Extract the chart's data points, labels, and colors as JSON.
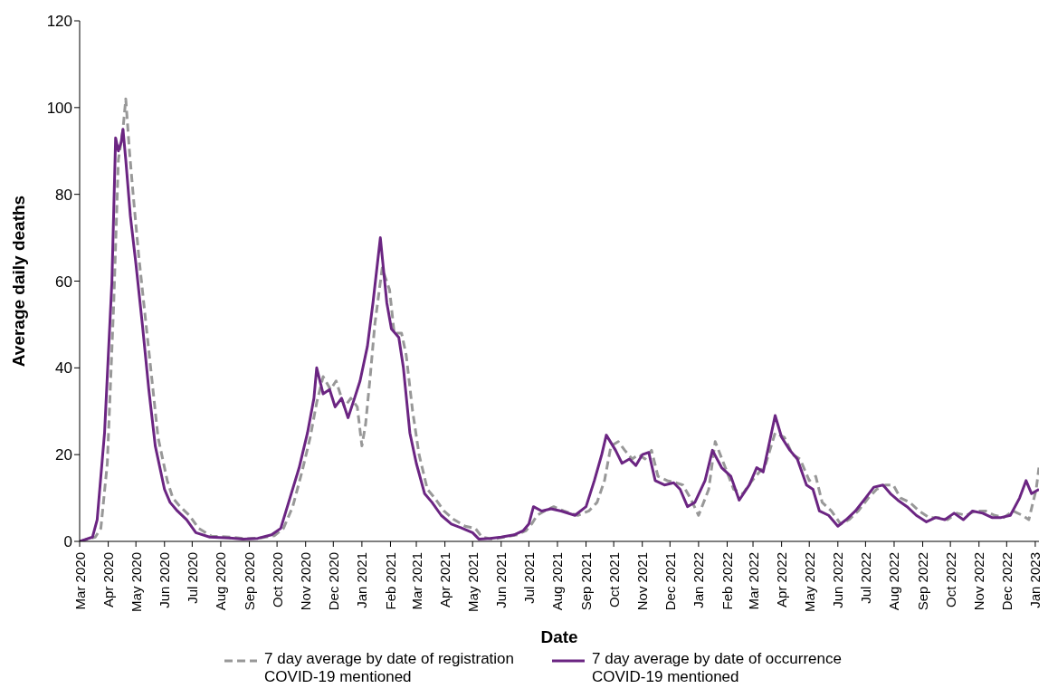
{
  "chart_data": {
    "type": "line",
    "xlabel": "Date",
    "ylabel": "Average daily deaths",
    "xlim": [
      "2020-03-01",
      "2023-01-05"
    ],
    "ylim": [
      0,
      120
    ],
    "yticks": [
      0,
      20,
      40,
      60,
      80,
      100,
      120
    ],
    "xticks": [
      {
        "value": "2020-03-01",
        "label": "Mar 2020"
      },
      {
        "value": "2020-04-01",
        "label": "Apr 2020"
      },
      {
        "value": "2020-05-01",
        "label": "May 2020"
      },
      {
        "value": "2020-06-01",
        "label": "Jun 2020"
      },
      {
        "value": "2020-07-01",
        "label": "Jul 2020"
      },
      {
        "value": "2020-08-01",
        "label": "Aug 2020"
      },
      {
        "value": "2020-09-01",
        "label": "Sep 2020"
      },
      {
        "value": "2020-10-01",
        "label": "Oct 2020"
      },
      {
        "value": "2020-11-01",
        "label": "Nov 2020"
      },
      {
        "value": "2020-12-01",
        "label": "Dec 2020"
      },
      {
        "value": "2021-01-01",
        "label": "Jan 2021"
      },
      {
        "value": "2021-02-01",
        "label": "Feb 2021"
      },
      {
        "value": "2021-03-01",
        "label": "Mar 2021"
      },
      {
        "value": "2021-04-01",
        "label": "Apr 2021"
      },
      {
        "value": "2021-05-01",
        "label": "May 2021"
      },
      {
        "value": "2021-06-01",
        "label": "Jun 2021"
      },
      {
        "value": "2021-07-01",
        "label": "Jul 2021"
      },
      {
        "value": "2021-08-01",
        "label": "Aug 2021"
      },
      {
        "value": "2021-09-01",
        "label": "Sep 2021"
      },
      {
        "value": "2021-10-01",
        "label": "Oct 2021"
      },
      {
        "value": "2021-11-01",
        "label": "Nov 2021"
      },
      {
        "value": "2021-12-01",
        "label": "Dec 2021"
      },
      {
        "value": "2022-01-01",
        "label": "Jan 2022"
      },
      {
        "value": "2022-02-01",
        "label": "Feb 2022"
      },
      {
        "value": "2022-03-01",
        "label": "Mar 2022"
      },
      {
        "value": "2022-04-01",
        "label": "Apr 2022"
      },
      {
        "value": "2022-05-01",
        "label": "May 2022"
      },
      {
        "value": "2022-06-01",
        "label": "Jun 2022"
      },
      {
        "value": "2022-07-01",
        "label": "Jul 2022"
      },
      {
        "value": "2022-08-01",
        "label": "Aug 2022"
      },
      {
        "value": "2022-09-01",
        "label": "Sep 2022"
      },
      {
        "value": "2022-10-01",
        "label": "Oct 2022"
      },
      {
        "value": "2022-11-01",
        "label": "Nov 2022"
      },
      {
        "value": "2022-12-01",
        "label": "Dec 2022"
      },
      {
        "value": "2023-01-01",
        "label": "Jan 2023"
      }
    ],
    "legend": "bottom",
    "marker": "none",
    "series": [
      {
        "name": "7 day average by date of registration\nCOVID-19 mentioned",
        "color": "#989898",
        "line_style": "dashed",
        "x": [
          "2020-03-01",
          "2020-03-18",
          "2020-03-24",
          "2020-03-31",
          "2020-04-07",
          "2020-04-12",
          "2020-04-17",
          "2020-04-20",
          "2020-04-24",
          "2020-04-28",
          "2020-05-04",
          "2020-05-11",
          "2020-05-18",
          "2020-05-25",
          "2020-06-04",
          "2020-06-10",
          "2020-06-18",
          "2020-06-28",
          "2020-07-08",
          "2020-07-22",
          "2020-08-12",
          "2020-08-28",
          "2020-09-13",
          "2020-09-28",
          "2020-10-08",
          "2020-10-18",
          "2020-10-28",
          "2020-11-06",
          "2020-11-13",
          "2020-11-20",
          "2020-11-28",
          "2020-12-04",
          "2020-12-13",
          "2020-12-20",
          "2020-12-27",
          "2021-01-01",
          "2021-01-05",
          "2021-01-10",
          "2021-01-15",
          "2021-01-23",
          "2021-01-31",
          "2021-02-05",
          "2021-02-13",
          "2021-02-18",
          "2021-02-25",
          "2021-03-04",
          "2021-03-13",
          "2021-03-21",
          "2021-03-31",
          "2021-04-11",
          "2021-04-23",
          "2021-05-04",
          "2021-05-11",
          "2021-05-23",
          "2021-06-04",
          "2021-06-18",
          "2021-06-28",
          "2021-07-04",
          "2021-07-10",
          "2021-07-18",
          "2021-07-28",
          "2021-08-08",
          "2021-08-23",
          "2021-09-04",
          "2021-09-13",
          "2021-09-21",
          "2021-09-28",
          "2021-10-06",
          "2021-10-13",
          "2021-10-21",
          "2021-10-28",
          "2021-11-04",
          "2021-11-11",
          "2021-11-18",
          "2021-11-28",
          "2021-12-08",
          "2021-12-15",
          "2021-12-23",
          "2022-01-01",
          "2022-01-12",
          "2022-01-19",
          "2022-01-30",
          "2022-02-08",
          "2022-02-18",
          "2022-02-28",
          "2022-03-08",
          "2022-03-15",
          "2022-03-25",
          "2022-04-04",
          "2022-04-13",
          "2022-04-21",
          "2022-05-01",
          "2022-05-08",
          "2022-05-15",
          "2022-05-25",
          "2022-06-04",
          "2022-06-13",
          "2022-06-23",
          "2022-07-04",
          "2022-07-13",
          "2022-07-23",
          "2022-07-31",
          "2022-08-08",
          "2022-08-18",
          "2022-08-28",
          "2022-09-08",
          "2022-09-18",
          "2022-09-28",
          "2022-10-08",
          "2022-10-18",
          "2022-10-28",
          "2022-11-08",
          "2022-11-18",
          "2022-11-28",
          "2022-12-08",
          "2022-12-18",
          "2022-12-25",
          "2023-01-02",
          "2023-01-05"
        ],
        "values": [
          0,
          1,
          3,
          18,
          55,
          88,
          95,
          102,
          90,
          80,
          66,
          52,
          38,
          24,
          14,
          10,
          8,
          6,
          3,
          1.2,
          1,
          0.6,
          0.8,
          1.3,
          3,
          8,
          16,
          24,
          32,
          38,
          35,
          37,
          31,
          33,
          31,
          22,
          27,
          38,
          50,
          63,
          58,
          48,
          48,
          43,
          30,
          20,
          12,
          10,
          7,
          5,
          3.5,
          3,
          1,
          0.5,
          1,
          1.5,
          2.5,
          4,
          6,
          7,
          8,
          7,
          6,
          7,
          9,
          14,
          22,
          23,
          21,
          19,
          20,
          19,
          21,
          15,
          14,
          13.5,
          13,
          10,
          6,
          12,
          23,
          17,
          12,
          11,
          14,
          16,
          18,
          25,
          24,
          20,
          19,
          14,
          15,
          9,
          7,
          4,
          5,
          7,
          10,
          12,
          13,
          13,
          10,
          9,
          7,
          5.5,
          5.5,
          5,
          6.5,
          6,
          7,
          7,
          6,
          5.5,
          7,
          6,
          5,
          12,
          17
        ]
      },
      {
        "name": "7 day average by date of occurrence\nCOVID-19 mentioned",
        "color": "#6b2582",
        "line_style": "solid",
        "x": [
          "2020-03-01",
          "2020-03-15",
          "2020-03-20",
          "2020-03-28",
          "2020-04-05",
          "2020-04-09",
          "2020-04-12",
          "2020-04-15",
          "2020-04-17",
          "2020-04-20",
          "2020-04-25",
          "2020-05-01",
          "2020-05-08",
          "2020-05-15",
          "2020-05-22",
          "2020-06-01",
          "2020-06-07",
          "2020-06-15",
          "2020-06-25",
          "2020-07-05",
          "2020-07-20",
          "2020-08-10",
          "2020-08-25",
          "2020-09-10",
          "2020-09-25",
          "2020-10-05",
          "2020-10-15",
          "2020-10-25",
          "2020-11-03",
          "2020-11-10",
          "2020-11-13",
          "2020-11-20",
          "2020-11-27",
          "2020-12-03",
          "2020-12-10",
          "2020-12-17",
          "2020-12-24",
          "2020-12-30",
          "2021-01-07",
          "2021-01-13",
          "2021-01-21",
          "2021-01-28",
          "2021-02-02",
          "2021-02-10",
          "2021-02-15",
          "2021-02-22",
          "2021-03-01",
          "2021-03-10",
          "2021-03-18",
          "2021-03-28",
          "2021-04-08",
          "2021-04-20",
          "2021-05-01",
          "2021-05-08",
          "2021-05-20",
          "2021-06-01",
          "2021-06-15",
          "2021-06-25",
          "2021-07-01",
          "2021-07-06",
          "2021-07-15",
          "2021-07-25",
          "2021-08-05",
          "2021-08-20",
          "2021-09-01",
          "2021-09-10",
          "2021-09-18",
          "2021-09-23",
          "2021-10-03",
          "2021-10-10",
          "2021-10-18",
          "2021-10-25",
          "2021-11-01",
          "2021-11-08",
          "2021-11-15",
          "2021-11-25",
          "2021-12-05",
          "2021-12-12",
          "2021-12-20",
          "2021-12-28",
          "2022-01-08",
          "2022-01-16",
          "2022-01-26",
          "2022-02-05",
          "2022-02-14",
          "2022-02-25",
          "2022-03-05",
          "2022-03-12",
          "2022-03-20",
          "2022-03-25",
          "2022-04-01",
          "2022-04-10",
          "2022-04-18",
          "2022-04-28",
          "2022-05-05",
          "2022-05-12",
          "2022-05-22",
          "2022-06-01",
          "2022-06-10",
          "2022-06-20",
          "2022-07-01",
          "2022-07-10",
          "2022-07-20",
          "2022-07-28",
          "2022-08-05",
          "2022-08-15",
          "2022-08-25",
          "2022-09-05",
          "2022-09-15",
          "2022-09-25",
          "2022-10-05",
          "2022-10-15",
          "2022-10-25",
          "2022-11-05",
          "2022-11-15",
          "2022-11-25",
          "2022-12-05",
          "2022-12-15",
          "2022-12-22",
          "2022-12-28",
          "2023-01-05"
        ],
        "values": [
          0,
          1,
          5,
          25,
          60,
          93,
          90,
          92,
          95,
          88,
          75,
          64,
          50,
          35,
          22,
          12,
          9,
          7,
          5,
          2,
          1,
          0.8,
          0.5,
          0.7,
          1.5,
          3,
          10,
          17,
          25,
          33,
          40,
          34,
          35,
          31,
          33,
          28.5,
          33,
          37,
          45,
          55,
          70,
          55,
          49,
          47,
          40,
          25,
          18,
          11,
          9,
          6,
          4,
          3,
          2,
          0.5,
          0.7,
          1,
          1.5,
          2.5,
          4,
          8,
          7,
          7.5,
          7,
          6,
          8,
          14,
          20,
          24.5,
          21,
          18,
          19,
          17.5,
          20,
          20.5,
          14,
          13,
          13.5,
          12,
          8,
          9,
          14,
          21,
          17,
          15,
          9.5,
          13,
          17,
          16,
          24,
          29,
          24,
          21,
          19,
          13,
          12,
          7,
          6,
          3.5,
          5,
          7,
          10,
          12.5,
          13,
          11,
          9.5,
          8,
          6,
          4.5,
          5.5,
          5,
          6.5,
          5,
          7,
          6.5,
          5.5,
          5.5,
          6,
          10,
          14,
          11,
          12
        ]
      }
    ]
  }
}
